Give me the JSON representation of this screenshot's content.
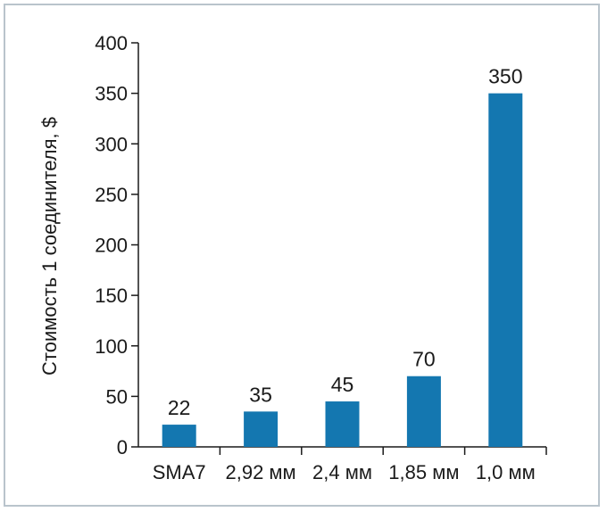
{
  "chart_data": {
    "type": "bar",
    "categories": [
      "SMA7",
      "2,92 мм",
      "2,4 мм",
      "1,85 мм",
      "1,0 мм"
    ],
    "values": [
      22,
      35,
      45,
      70,
      350
    ],
    "data_labels": [
      "22",
      "35",
      "45",
      "70",
      "350"
    ],
    "title": "",
    "xlabel": "",
    "ylabel": "Стоимость 1 соединителя, $",
    "ylim": [
      0,
      400
    ],
    "yticks": [
      0,
      50,
      100,
      150,
      200,
      250,
      300,
      350,
      400
    ],
    "ytick_labels": [
      "0",
      "50",
      "100",
      "150",
      "200",
      "250",
      "300",
      "350",
      "400"
    ],
    "grid": false,
    "legend": "none",
    "bar_color": "#1477b0",
    "frame_color": "#b9c4cc"
  }
}
